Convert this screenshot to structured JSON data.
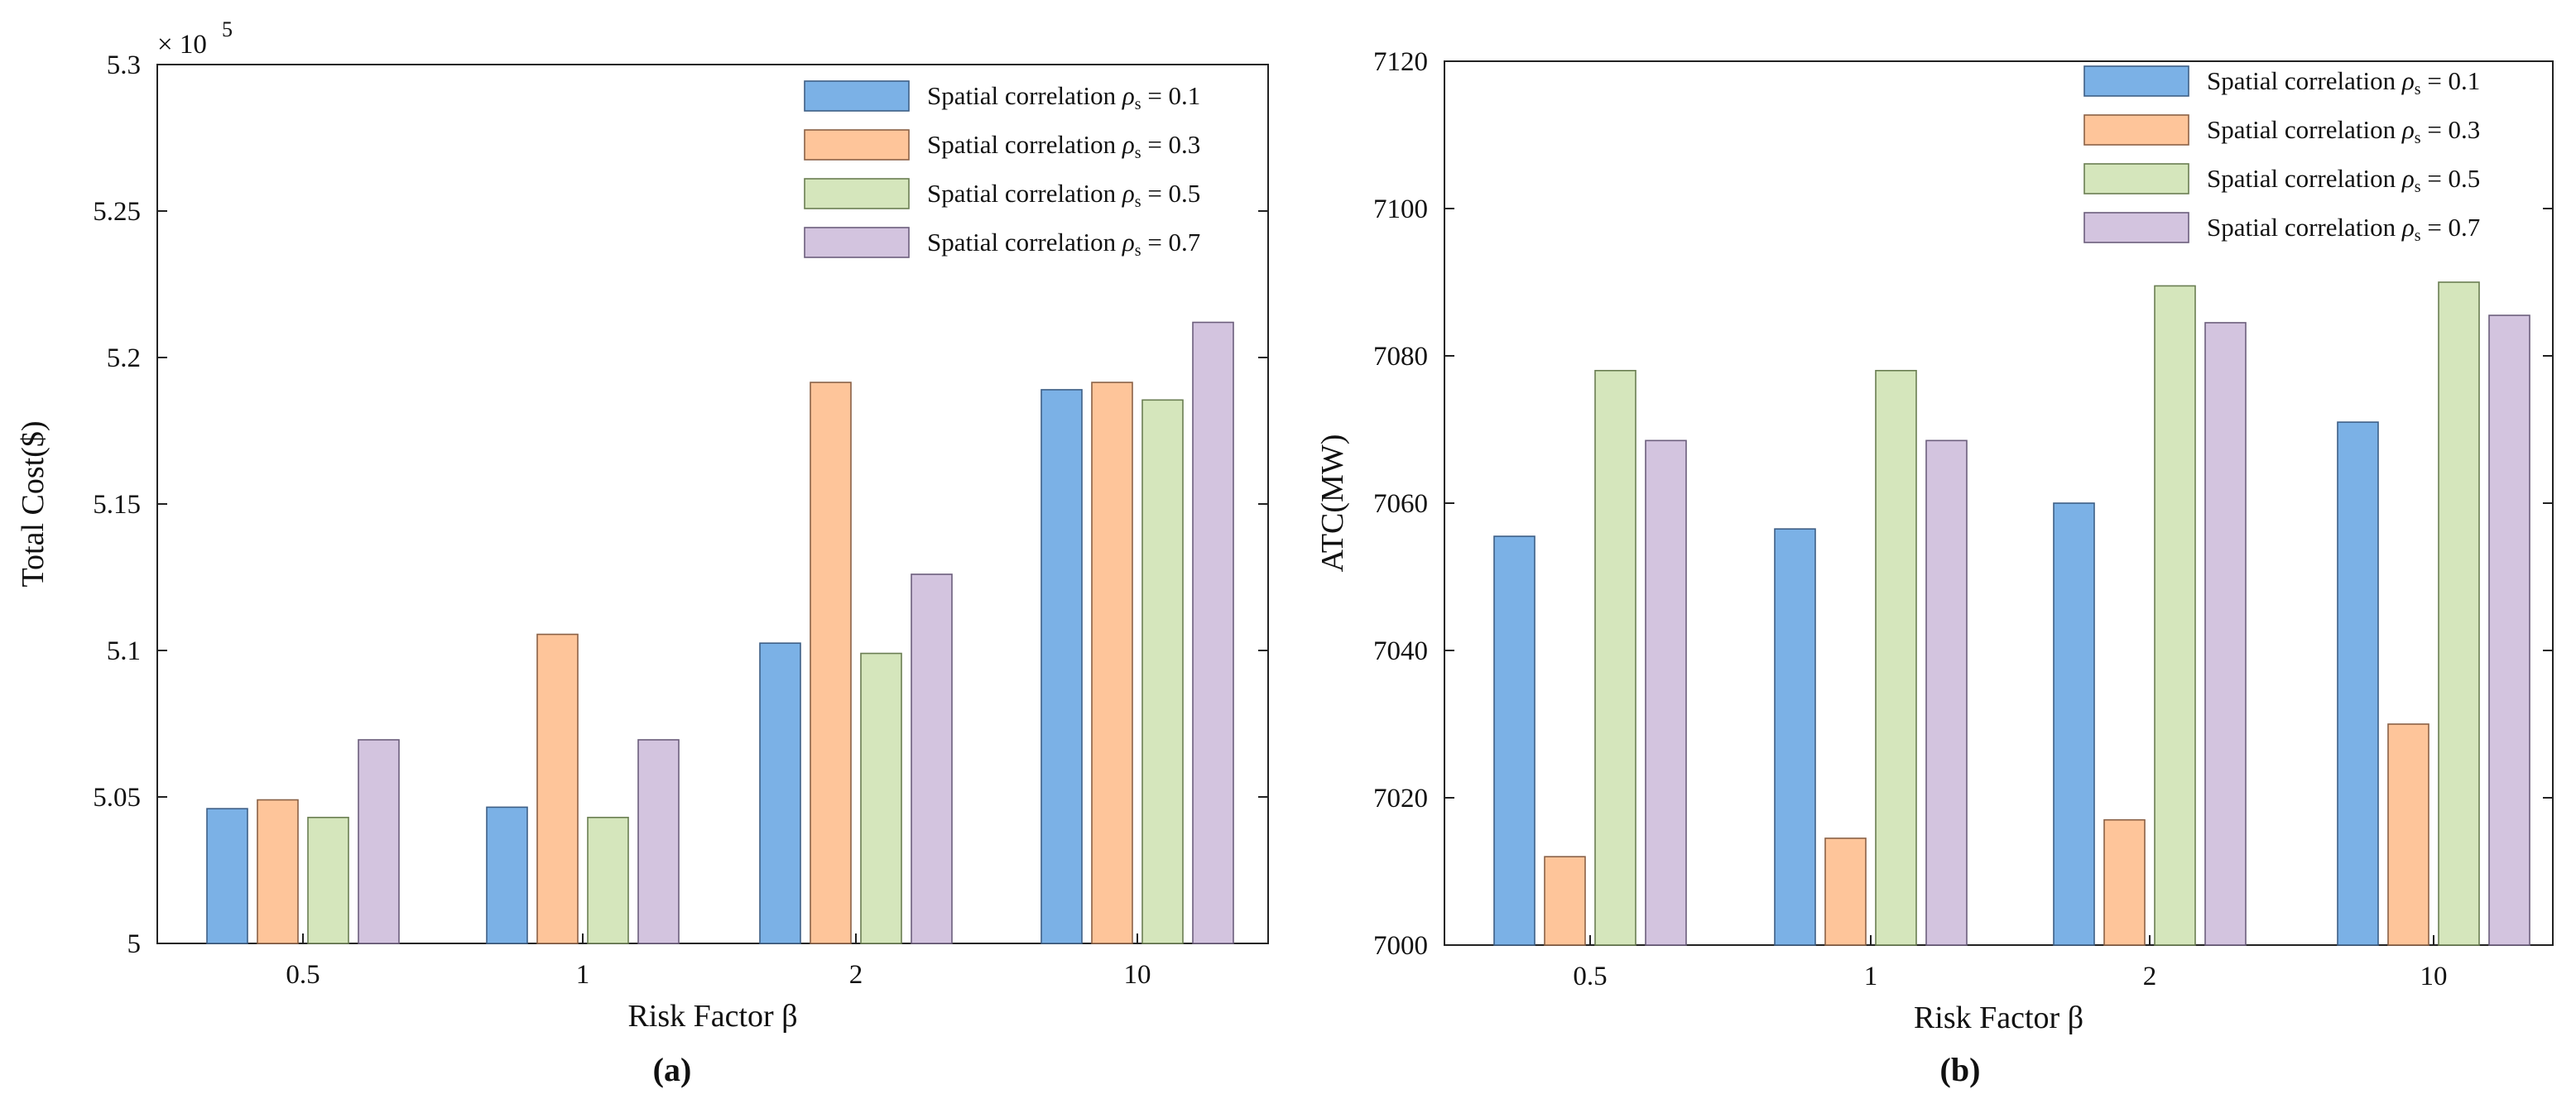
{
  "colors": {
    "series": [
      "#7BB1E6",
      "#FEC59A",
      "#D5E6BC",
      "#D3C4DF"
    ],
    "edges": [
      "#3E5F86",
      "#8A6146",
      "#6A7E52",
      "#6C5E7C"
    ]
  },
  "chart_data": [
    {
      "type": "bar",
      "panel_label": "(a)",
      "exponent_label": "× 10",
      "exponent_power": "5",
      "xlabel": "Risk Factor β",
      "ylabel": "Total Cost($)",
      "categories": [
        "0.5",
        "1",
        "2",
        "10"
      ],
      "ylim": [
        5.0,
        5.3
      ],
      "yticks": [
        "5",
        "5.05",
        "5.1",
        "5.15",
        "5.2",
        "5.25",
        "5.3"
      ],
      "ytick_values": [
        5.0,
        5.05,
        5.1,
        5.15,
        5.2,
        5.25,
        5.3
      ],
      "series": [
        {
          "name": "Spatial correlation ρs = 0.1",
          "values": [
            5.046,
            5.0465,
            5.1025,
            5.189
          ]
        },
        {
          "name": "Spatial correlation ρs = 0.3",
          "values": [
            5.049,
            5.1055,
            5.1915,
            5.1915
          ]
        },
        {
          "name": "Spatial correlation ρs = 0.5",
          "values": [
            5.043,
            5.043,
            5.099,
            5.1855
          ]
        },
        {
          "name": "Spatial correlation ρs = 0.7",
          "values": [
            5.0695,
            5.0695,
            5.126,
            5.212
          ]
        }
      ]
    },
    {
      "type": "bar",
      "panel_label": "(b)",
      "xlabel": "Risk Factor β",
      "ylabel": "ATC(MW)",
      "categories": [
        "0.5",
        "1",
        "2",
        "10"
      ],
      "ylim": [
        7000,
        7120
      ],
      "yticks": [
        "7000",
        "7020",
        "7040",
        "7060",
        "7080",
        "7100",
        "7120"
      ],
      "ytick_values": [
        7000,
        7020,
        7040,
        7060,
        7080,
        7100,
        7120
      ],
      "series": [
        {
          "name": "Spatial correlation ρs = 0.1",
          "values": [
            7055.5,
            7056.5,
            7060,
            7071
          ]
        },
        {
          "name": "Spatial correlation ρs = 0.3",
          "values": [
            7012,
            7014.5,
            7017,
            7030
          ]
        },
        {
          "name": "Spatial correlation ρs = 0.5",
          "values": [
            7078,
            7078,
            7089.5,
            7090
          ]
        },
        {
          "name": "Spatial correlation ρs = 0.7",
          "values": [
            7068.5,
            7068.5,
            7084.5,
            7085.5
          ]
        }
      ]
    }
  ]
}
